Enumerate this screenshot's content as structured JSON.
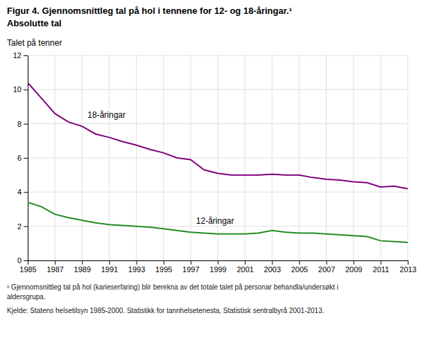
{
  "chart_data": {
    "type": "line",
    "title": "Figur 4. Gjennomsnittleg tal på hol i tennene for 12- og 18-åringar.¹",
    "subtitle": "Absolutte tal",
    "y_label": "Talet på tenner",
    "x": [
      1985,
      1986,
      1987,
      1988,
      1989,
      1990,
      1991,
      1992,
      1993,
      1994,
      1995,
      1996,
      1997,
      1998,
      1999,
      2000,
      2001,
      2002,
      2003,
      2004,
      2005,
      2006,
      2007,
      2008,
      2009,
      2010,
      2011,
      2012,
      2013
    ],
    "series": [
      {
        "name": "18-åringar",
        "color": "#800080",
        "values": [
          10.4,
          9.5,
          8.6,
          8.1,
          7.85,
          7.4,
          7.2,
          6.95,
          6.75,
          6.5,
          6.3,
          6.0,
          5.9,
          5.3,
          5.1,
          5.0,
          5.0,
          5.0,
          5.05,
          5.0,
          5.0,
          4.85,
          4.75,
          4.7,
          4.6,
          4.55,
          4.3,
          4.35,
          4.2
        ]
      },
      {
        "name": "12-åringar",
        "color": "#228B22",
        "values": [
          3.4,
          3.15,
          2.7,
          2.5,
          2.35,
          2.2,
          2.1,
          2.05,
          2.0,
          1.95,
          1.85,
          1.75,
          1.65,
          1.6,
          1.55,
          1.55,
          1.55,
          1.6,
          1.75,
          1.65,
          1.6,
          1.6,
          1.55,
          1.5,
          1.45,
          1.4,
          1.15,
          1.1,
          1.05
        ]
      }
    ],
    "xlim": [
      1985,
      2013
    ],
    "xticks": [
      1985,
      1987,
      1989,
      1991,
      1993,
      1995,
      1997,
      1999,
      2001,
      2003,
      2005,
      2007,
      2009,
      2011,
      2013
    ],
    "ylim": [
      0,
      12
    ],
    "yticks": [
      0,
      2,
      4,
      6,
      8,
      10,
      12
    ],
    "grid": true,
    "footnotes": [
      "¹ Gjennomsnittleg tal på hol (karieserfaring) blir berekna av det totale talet på personar behandla/undersøkt i",
      "aldersgrupa.",
      "Kjelde: Statens helsetilsyn 1985-2000. Statistikk for tannhelsetenesta, Statistisk sentralbyrå 2001-2013."
    ]
  }
}
